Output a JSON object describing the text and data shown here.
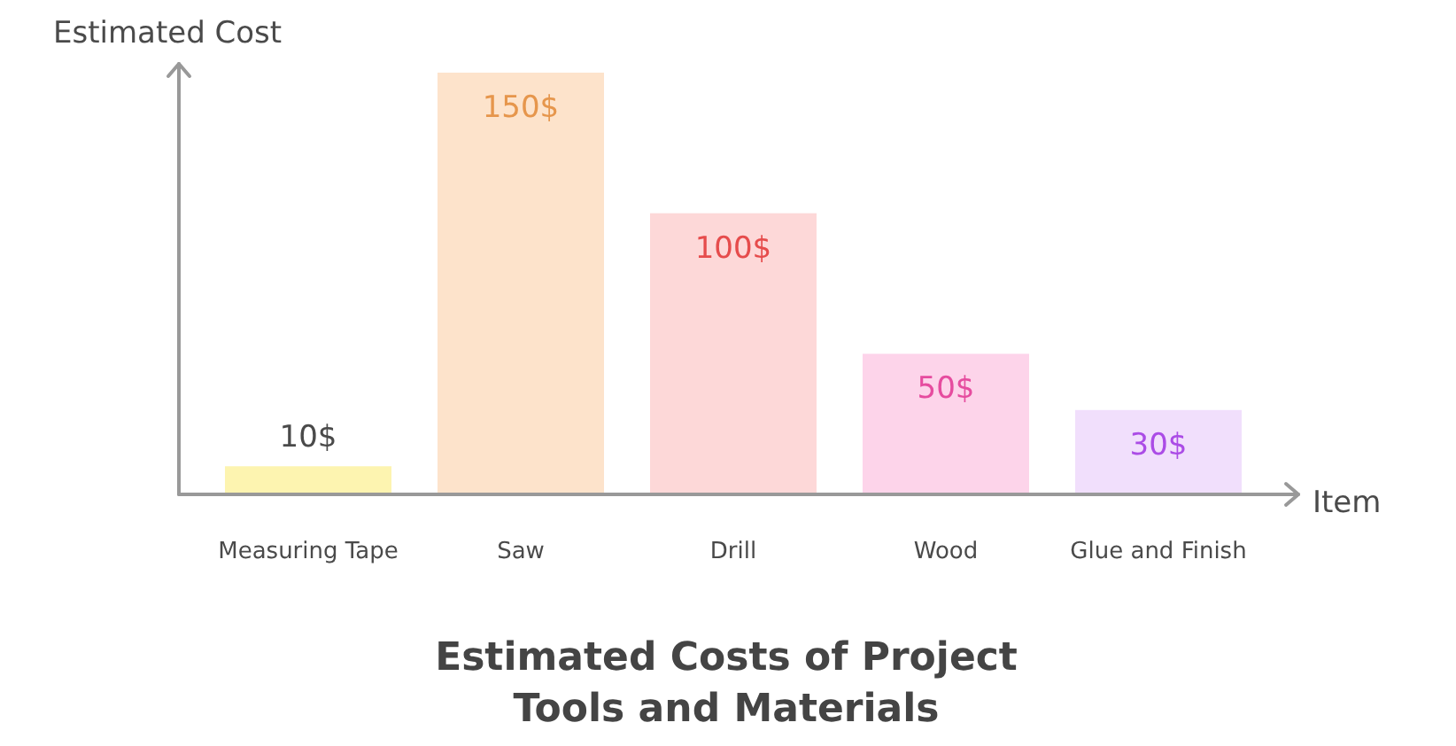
{
  "chart_data": {
    "type": "bar",
    "title": "Estimated Costs of Project Tools and Materials",
    "xlabel": "Item",
    "ylabel": "Estimated Cost",
    "categories": [
      "Measuring Tape",
      "Saw",
      "Drill",
      "Wood",
      "Glue and Finish"
    ],
    "values": [
      10,
      150,
      100,
      50,
      30
    ],
    "colors": [
      "#fdf4b0",
      "#fde3cb",
      "#fdd8d8",
      "#fdd4ea",
      "#f1dffc"
    ],
    "value_labels": [
      "10$",
      "150$",
      "100$",
      "50$",
      "30$"
    ],
    "tick_labels": "x"
  }
}
